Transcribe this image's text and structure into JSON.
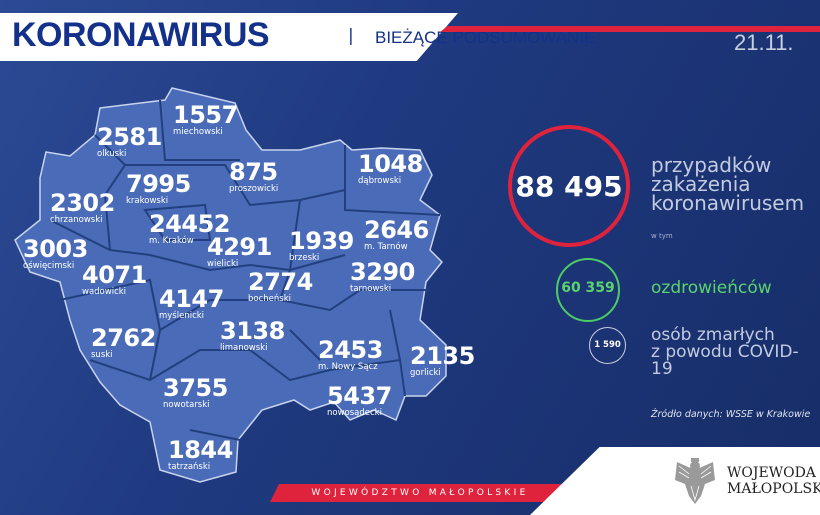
{
  "header": {
    "title": "KORONAWIRUS",
    "separator": "|",
    "subtitle": "BIEŻĄCE PODSUMOWANIE",
    "date": "21.11."
  },
  "districts": [
    {
      "count": "1557",
      "name": "miechowski"
    },
    {
      "count": "2581",
      "name": "olkuski"
    },
    {
      "count": "875",
      "name": "proszowicki"
    },
    {
      "count": "1048",
      "name": "dąbrowski"
    },
    {
      "count": "7995",
      "name": "krakowski"
    },
    {
      "count": "2302",
      "name": "chrzanowski"
    },
    {
      "count": "24452",
      "name": "m. Kraków"
    },
    {
      "count": "2646",
      "name": "m. Tarnów"
    },
    {
      "count": "4291",
      "name": "wielicki"
    },
    {
      "count": "1939",
      "name": "brzeski"
    },
    {
      "count": "3003",
      "name": "oświęcimski"
    },
    {
      "count": "4071",
      "name": "wadowicki"
    },
    {
      "count": "3290",
      "name": "tarnowski"
    },
    {
      "count": "2774",
      "name": "bocheński"
    },
    {
      "count": "4147",
      "name": "myślenicki"
    },
    {
      "count": "2762",
      "name": "suski"
    },
    {
      "count": "3138",
      "name": "limanowski"
    },
    {
      "count": "2453",
      "name": "m. Nowy Sącz"
    },
    {
      "count": "2135",
      "name": "gorlicki"
    },
    {
      "count": "3755",
      "name": "nowotarski"
    },
    {
      "count": "5437",
      "name": "nowosądecki"
    },
    {
      "count": "1844",
      "name": "tatrzański"
    }
  ],
  "summary": {
    "total": "88 495",
    "total_label": [
      "przypadków",
      "zakażenia",
      "koronawirusem"
    ],
    "including": "w tym",
    "recovered": "60 359",
    "recovered_label": "ozdrowieńców",
    "deaths": "1 590",
    "deaths_label": [
      "osób zmarłych",
      "z powodu COVID-19"
    ],
    "source": "Źródło danych: WSSE w Krakowie"
  },
  "footer": {
    "region": "WOJEWÓDZTWO MAŁOPOLSKIE",
    "logo_text": [
      "WOJEWODA",
      "MAŁOPOLSKI"
    ]
  },
  "colors": {
    "background": "#1f3a80",
    "map": "#4a6cb8",
    "accent_red": "#e0233d",
    "recovered_green": "#5bd36d"
  }
}
